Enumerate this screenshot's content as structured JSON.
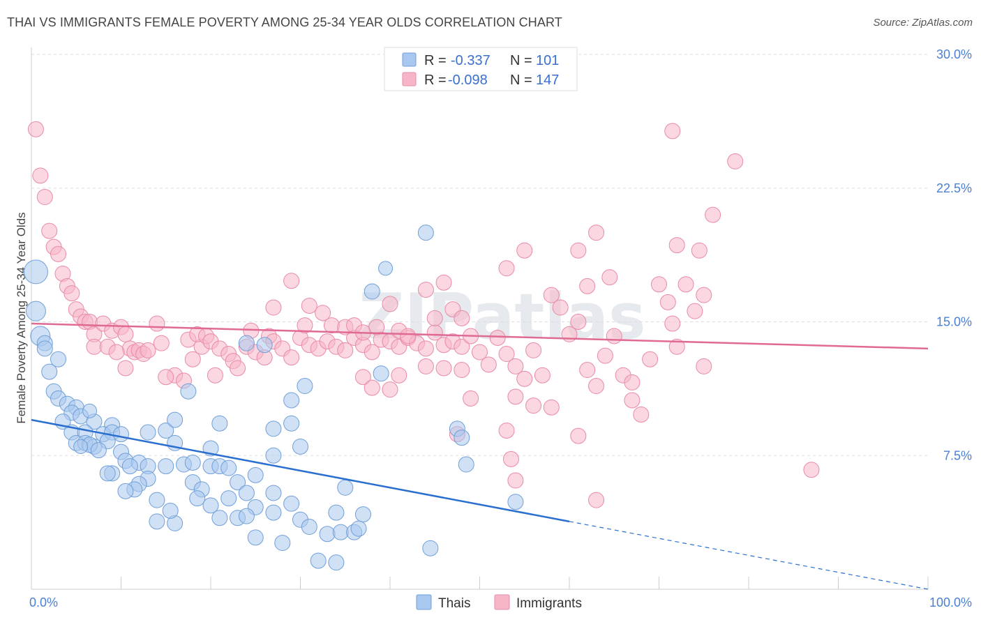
{
  "title": "THAI VS IMMIGRANTS FEMALE POVERTY AMONG 25-34 YEAR OLDS CORRELATION CHART",
  "source": "Source: ZipAtlas.com",
  "watermark": "ZIPatlas",
  "colors": {
    "thais_fill": "#a9c8ef",
    "thais_stroke": "#6f9fd8",
    "thais_line": "#2a6fd0",
    "immigrants_fill": "#f7b6c8",
    "immigrants_stroke": "#e98aa6",
    "immigrants_line": "#e06a93",
    "tick_label": "#4a7fd4",
    "grid": "#dddddd"
  },
  "legend": {
    "rows": [
      {
        "r_label": "R =",
        "r_value": "-0.337",
        "n_label": "N =",
        "n_value": "101"
      },
      {
        "r_label": "R =",
        "r_value": "-0.098",
        "n_label": "N =",
        "n_value": "147"
      }
    ]
  },
  "chart_data": {
    "type": "scatter",
    "title": "THAI VS IMMIGRANTS FEMALE POVERTY AMONG 25-34 YEAR OLDS CORRELATION CHART",
    "xlabel": "",
    "ylabel": "Female Poverty Among 25-34 Year Olds",
    "xlim": [
      0,
      100
    ],
    "ylim": [
      0,
      30
    ],
    "x_tick_labels": [
      "0.0%",
      "100.0%"
    ],
    "y_ticks": [
      7.5,
      15.0,
      22.5,
      30.0
    ],
    "y_tick_labels": [
      "7.5%",
      "15.0%",
      "22.5%",
      "30.0%"
    ],
    "grid": true,
    "legend_position": "top-center",
    "series": [
      {
        "name": "Thais",
        "trend": {
          "x0": 0,
          "y0": 9.5,
          "x1": 60,
          "y1": 3.8,
          "dashed_to": 100
        },
        "points": [
          [
            0.5,
            17.8,
            3
          ],
          [
            0.5,
            15.6,
            2
          ],
          [
            1,
            14.2,
            2
          ],
          [
            1.5,
            13.8,
            1
          ],
          [
            1.5,
            13.5,
            1
          ],
          [
            3,
            12.9,
            1
          ],
          [
            2,
            12.2,
            1
          ],
          [
            2.5,
            11.1,
            1
          ],
          [
            3,
            10.7,
            1
          ],
          [
            4,
            10.4,
            1
          ],
          [
            5,
            10.2,
            1
          ],
          [
            4.5,
            9.9,
            1
          ],
          [
            5.5,
            9.7,
            1
          ],
          [
            3.5,
            9.4,
            1
          ],
          [
            7,
            9.4,
            1
          ],
          [
            9,
            9.2,
            1
          ],
          [
            4.5,
            8.8,
            1
          ],
          [
            6,
            8.8,
            1
          ],
          [
            8,
            8.7,
            1
          ],
          [
            9,
            8.8,
            1
          ],
          [
            10,
            8.7,
            1
          ],
          [
            13,
            8.8,
            1
          ],
          [
            15,
            8.9,
            1
          ],
          [
            16,
            9.5,
            1
          ],
          [
            21,
            9.3,
            1
          ],
          [
            27,
            9.0,
            1
          ],
          [
            29,
            9.3,
            1
          ],
          [
            5,
            8.2,
            1
          ],
          [
            6,
            8.2,
            1
          ],
          [
            8.5,
            8.3,
            1
          ],
          [
            7,
            8.0,
            1
          ],
          [
            6.5,
            8.1,
            1
          ],
          [
            7.5,
            7.8,
            1
          ],
          [
            10,
            7.7,
            1
          ],
          [
            16,
            8.2,
            1
          ],
          [
            20,
            7.9,
            1
          ],
          [
            30,
            8.0,
            1
          ],
          [
            27,
            7.5,
            1
          ],
          [
            10.5,
            7.2,
            1
          ],
          [
            12,
            7.1,
            1
          ],
          [
            11,
            6.9,
            1
          ],
          [
            13,
            6.9,
            1
          ],
          [
            15,
            6.9,
            1
          ],
          [
            17,
            7.0,
            1
          ],
          [
            18,
            7.1,
            1
          ],
          [
            20,
            6.9,
            1
          ],
          [
            21,
            6.9,
            1
          ],
          [
            22,
            6.8,
            1
          ],
          [
            9,
            6.5,
            1
          ],
          [
            8.5,
            6.5,
            1
          ],
          [
            13,
            6.2,
            1
          ],
          [
            12,
            5.9,
            1
          ],
          [
            11.5,
            5.6,
            1
          ],
          [
            10.5,
            5.5,
            1
          ],
          [
            18,
            6.0,
            1
          ],
          [
            19,
            5.6,
            1
          ],
          [
            23,
            6.0,
            1
          ],
          [
            24,
            5.4,
            1
          ],
          [
            25,
            6.4,
            1
          ],
          [
            27,
            5.4,
            1
          ],
          [
            35,
            5.7,
            1
          ],
          [
            22,
            5.1,
            1
          ],
          [
            14,
            5.0,
            1
          ],
          [
            18.5,
            5.1,
            1
          ],
          [
            20,
            4.7,
            1
          ],
          [
            25,
            4.6,
            1
          ],
          [
            29,
            4.8,
            1
          ],
          [
            34,
            4.3,
            1
          ],
          [
            37,
            4.2,
            1
          ],
          [
            14,
            3.8,
            1
          ],
          [
            16,
            3.7,
            1
          ],
          [
            15.5,
            4.4,
            1
          ],
          [
            21,
            4.0,
            1
          ],
          [
            23,
            4.0,
            1
          ],
          [
            24,
            4.1,
            1
          ],
          [
            27,
            4.3,
            1
          ],
          [
            30,
            3.9,
            1
          ],
          [
            31,
            3.5,
            1
          ],
          [
            33,
            3.1,
            1
          ],
          [
            34.5,
            3.2,
            1
          ],
          [
            36,
            3.2,
            1
          ],
          [
            36.5,
            3.4,
            1
          ],
          [
            28,
            2.6,
            1
          ],
          [
            25,
            2.9,
            1
          ],
          [
            32,
            1.6,
            1
          ],
          [
            34,
            1.5,
            1
          ],
          [
            44.5,
            2.3,
            1
          ],
          [
            44,
            20.0,
            1
          ],
          [
            38,
            16.7,
            1
          ],
          [
            26,
            13.7,
            1
          ],
          [
            24,
            13.8,
            1
          ],
          [
            39,
            12.1,
            1
          ],
          [
            30.5,
            11.4,
            1
          ],
          [
            29,
            10.6,
            1
          ],
          [
            17.5,
            11.1,
            1
          ],
          [
            47.5,
            9.0,
            1
          ],
          [
            48,
            8.5,
            1
          ],
          [
            48.5,
            7.0,
            1
          ],
          [
            54,
            4.9,
            1
          ],
          [
            39.5,
            18.0,
            0
          ],
          [
            6.5,
            10.0,
            0
          ],
          [
            5.5,
            8.0,
            0
          ]
        ]
      },
      {
        "name": "Immigrants",
        "trend": {
          "x0": 0,
          "y0": 14.9,
          "x1": 100,
          "y1": 13.5
        },
        "points": [
          [
            0.5,
            25.8,
            1
          ],
          [
            1,
            23.2,
            1
          ],
          [
            1.5,
            22.0,
            1
          ],
          [
            2,
            20.1,
            1
          ],
          [
            2.5,
            19.2,
            1
          ],
          [
            3,
            18.8,
            1
          ],
          [
            3.5,
            17.7,
            1
          ],
          [
            4,
            17.0,
            1
          ],
          [
            4.5,
            16.6,
            1
          ],
          [
            5,
            15.7,
            1
          ],
          [
            5.5,
            15.3,
            1
          ],
          [
            6,
            15.0,
            1
          ],
          [
            6.5,
            15.0,
            1
          ],
          [
            7,
            14.3,
            1
          ],
          [
            8,
            14.9,
            1
          ],
          [
            9,
            14.5,
            1
          ],
          [
            10,
            14.7,
            1
          ],
          [
            10.5,
            14.3,
            1
          ],
          [
            11,
            13.5,
            1
          ],
          [
            11.5,
            13.3,
            1
          ],
          [
            7,
            13.6,
            1
          ],
          [
            8.5,
            13.6,
            1
          ],
          [
            9.5,
            13.3,
            1
          ],
          [
            12,
            13.4,
            1
          ],
          [
            12.5,
            13.2,
            1
          ],
          [
            13,
            13.4,
            1
          ],
          [
            14,
            14.9,
            1
          ],
          [
            14.5,
            13.8,
            1
          ],
          [
            16,
            12.0,
            1
          ],
          [
            17,
            11.7,
            1
          ],
          [
            18,
            12.9,
            1
          ],
          [
            15,
            11.9,
            1
          ],
          [
            10.5,
            12.4,
            1
          ],
          [
            19,
            13.6,
            1
          ],
          [
            17.5,
            14.0,
            1
          ],
          [
            18.5,
            14.3,
            1
          ],
          [
            19.5,
            14.2,
            1
          ],
          [
            20,
            13.9,
            1
          ],
          [
            21,
            13.5,
            1
          ],
          [
            22,
            13.2,
            1
          ],
          [
            22.5,
            12.8,
            1
          ],
          [
            23,
            12.4,
            1
          ],
          [
            20.5,
            12.0,
            1
          ],
          [
            24,
            13.6,
            1
          ],
          [
            25,
            13.3,
            1
          ],
          [
            26,
            13.0,
            1
          ],
          [
            24.5,
            14.5,
            1
          ],
          [
            26.5,
            14.2,
            1
          ],
          [
            27,
            13.9,
            1
          ],
          [
            28,
            13.5,
            1
          ],
          [
            29,
            13.0,
            1
          ],
          [
            30,
            14.1,
            1
          ],
          [
            31,
            13.7,
            1
          ],
          [
            32,
            13.5,
            1
          ],
          [
            33,
            13.9,
            1
          ],
          [
            34,
            13.6,
            1
          ],
          [
            35,
            13.4,
            1
          ],
          [
            36,
            14.1,
            1
          ],
          [
            37,
            13.7,
            1
          ],
          [
            38,
            13.3,
            1
          ],
          [
            39,
            14.0,
            1
          ],
          [
            40,
            13.9,
            1
          ],
          [
            41,
            13.6,
            1
          ],
          [
            42,
            14.1,
            1
          ],
          [
            43,
            13.8,
            1
          ],
          [
            44,
            13.5,
            1
          ],
          [
            45,
            14.4,
            1
          ],
          [
            46,
            13.7,
            1
          ],
          [
            47,
            13.9,
            1
          ],
          [
            48,
            13.6,
            1
          ],
          [
            27,
            15.8,
            1
          ],
          [
            29,
            17.3,
            1
          ],
          [
            31,
            15.9,
            1
          ],
          [
            30.5,
            14.8,
            1
          ],
          [
            32.5,
            15.5,
            1
          ],
          [
            33.5,
            14.8,
            1
          ],
          [
            35,
            14.7,
            1
          ],
          [
            36,
            14.8,
            1
          ],
          [
            37,
            14.4,
            1
          ],
          [
            38.5,
            14.7,
            1
          ],
          [
            40,
            16.0,
            1
          ],
          [
            41,
            14.5,
            1
          ],
          [
            42,
            14.2,
            1
          ],
          [
            44,
            16.8,
            1
          ],
          [
            45,
            15.2,
            1
          ],
          [
            46,
            17.2,
            1
          ],
          [
            47,
            15.7,
            1
          ],
          [
            48,
            15.2,
            1
          ],
          [
            49,
            14.2,
            1
          ],
          [
            50,
            13.3,
            1
          ],
          [
            51,
            12.6,
            1
          ],
          [
            52,
            14.1,
            1
          ],
          [
            53,
            13.2,
            1
          ],
          [
            54,
            12.5,
            1
          ],
          [
            55,
            11.8,
            1
          ],
          [
            56,
            13.4,
            1
          ],
          [
            57,
            12.0,
            1
          ],
          [
            58,
            16.5,
            1
          ],
          [
            59,
            15.8,
            1
          ],
          [
            60,
            14.3,
            1
          ],
          [
            61,
            15.0,
            1
          ],
          [
            62,
            12.3,
            1
          ],
          [
            63,
            11.4,
            1
          ],
          [
            64,
            13.1,
            1
          ],
          [
            65,
            14.2,
            1
          ],
          [
            66,
            12.0,
            1
          ],
          [
            67,
            10.6,
            1
          ],
          [
            68,
            9.8,
            1
          ],
          [
            69,
            12.9,
            1
          ],
          [
            70,
            17.1,
            1
          ],
          [
            71,
            16.1,
            1
          ],
          [
            72,
            19.3,
            1
          ],
          [
            73,
            17.1,
            1
          ],
          [
            74,
            15.6,
            1
          ],
          [
            75,
            16.5,
            1
          ],
          [
            76,
            21.0,
            1
          ],
          [
            74.5,
            19.0,
            1
          ],
          [
            67,
            11.6,
            1
          ],
          [
            62,
            17.0,
            1
          ],
          [
            61,
            19.0,
            1
          ],
          [
            55,
            19.0,
            1
          ],
          [
            53,
            18.0,
            1
          ],
          [
            63,
            20.0,
            1
          ],
          [
            64.5,
            17.5,
            1
          ],
          [
            71.5,
            14.9,
            1
          ],
          [
            72,
            13.6,
            1
          ],
          [
            75,
            12.5,
            1
          ],
          [
            87,
            6.7,
            1
          ],
          [
            71.5,
            25.7,
            1
          ],
          [
            78.5,
            24.0,
            1
          ],
          [
            58,
            10.2,
            1
          ],
          [
            54,
            10.8,
            1
          ],
          [
            56,
            10.3,
            1
          ],
          [
            53,
            8.9,
            1
          ],
          [
            49,
            10.7,
            1
          ],
          [
            47.5,
            8.7,
            1
          ],
          [
            53.5,
            7.3,
            1
          ],
          [
            54,
            6.1,
            1
          ],
          [
            63,
            5.0,
            1
          ],
          [
            61,
            8.6,
            1
          ],
          [
            37,
            11.9,
            1
          ],
          [
            38,
            11.3,
            1
          ],
          [
            40,
            11.2,
            1
          ],
          [
            41,
            12.0,
            1
          ],
          [
            44,
            12.5,
            1
          ],
          [
            46,
            12.4,
            1
          ],
          [
            48,
            12.3,
            1
          ]
        ]
      }
    ]
  },
  "bottom_legend": {
    "items": [
      {
        "label": "Thais"
      },
      {
        "label": "Immigrants"
      }
    ]
  }
}
